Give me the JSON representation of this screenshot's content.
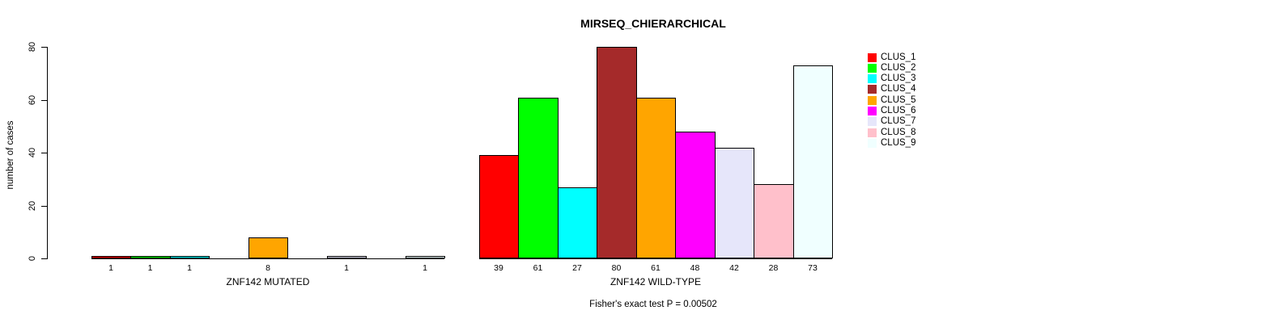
{
  "chart_data": {
    "type": "bar",
    "title": "MIRSEQ_CHIERARCHICAL",
    "ylabel": "number of cases",
    "xlabel": "",
    "ylim": [
      0,
      80
    ],
    "yticks": [
      0,
      20,
      40,
      60,
      80
    ],
    "grid": false,
    "legend_position": "right",
    "bar_value_labels_shown": true,
    "clusters": [
      {
        "name": "CLUS_1",
        "color": "#FF0000"
      },
      {
        "name": "CLUS_2",
        "color": "#00FF00"
      },
      {
        "name": "CLUS_3",
        "color": "#00FFFF"
      },
      {
        "name": "CLUS_4",
        "color": "#A52A2A"
      },
      {
        "name": "CLUS_5",
        "color": "#FFA500"
      },
      {
        "name": "CLUS_6",
        "color": "#FF00FF"
      },
      {
        "name": "CLUS_7",
        "color": "#E6E6FA"
      },
      {
        "name": "CLUS_8",
        "color": "#FFC0CB"
      },
      {
        "name": "CLUS_9",
        "color": "#F0FFFF"
      }
    ],
    "groups": [
      {
        "label": "ZNF142 MUTATED",
        "values": [
          1,
          1,
          1,
          0,
          8,
          0,
          1,
          0,
          1
        ]
      },
      {
        "label": "ZNF142 WILD-TYPE",
        "values": [
          39,
          61,
          27,
          80,
          61,
          48,
          42,
          28,
          73
        ]
      }
    ],
    "footer": "Fisher's exact test P = 0.00502"
  }
}
